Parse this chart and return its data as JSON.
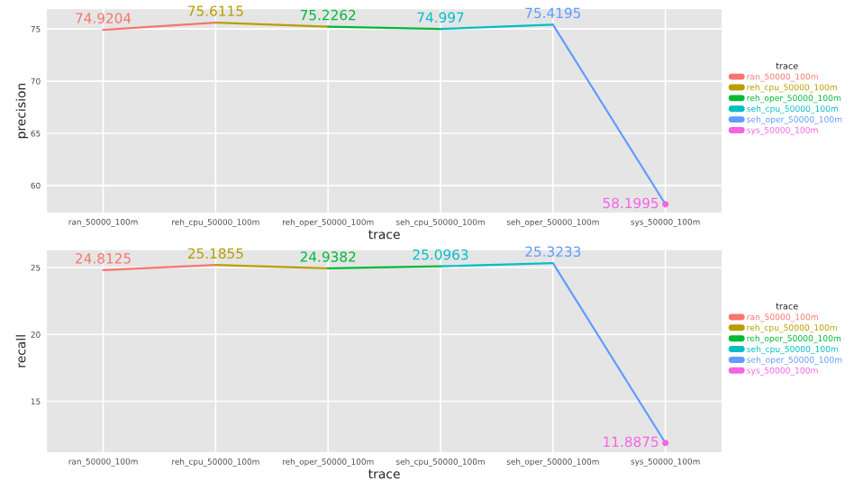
{
  "chart_data": [
    {
      "type": "line",
      "xlabel": "trace",
      "ylabel": "precision",
      "legend_title": "trace",
      "categories": [
        "ran_50000_100m",
        "reh_cpu_50000_100m",
        "reh_oper_50000_100m",
        "seh_cpu_50000_100m",
        "seh_oper_50000_100m",
        "sys_50000_100m"
      ],
      "series": [
        {
          "name": "ran_50000_100m",
          "color": "#f8766d",
          "values": [
            74.9204,
            75.6115,
            null,
            null,
            null,
            null
          ],
          "value_labels": [
            "74.9204",
            null,
            null,
            null,
            null,
            null
          ]
        },
        {
          "name": "reh_cpu_50000_100m",
          "color": "#b79f00",
          "values": [
            null,
            75.6115,
            75.2262,
            null,
            null,
            null
          ],
          "value_labels": [
            null,
            "75.6115",
            null,
            null,
            null,
            null
          ]
        },
        {
          "name": "reh_oper_50000_100m",
          "color": "#00ba38",
          "values": [
            null,
            null,
            75.2262,
            74.997,
            null,
            null
          ],
          "value_labels": [
            null,
            null,
            "75.2262",
            null,
            null,
            null
          ]
        },
        {
          "name": "seh_cpu_50000_100m",
          "color": "#00bfc4",
          "values": [
            null,
            null,
            null,
            74.997,
            75.4195,
            null
          ],
          "value_labels": [
            null,
            null,
            null,
            "74.997",
            null,
            null
          ]
        },
        {
          "name": "seh_oper_50000_100m",
          "color": "#619cff",
          "values": [
            null,
            null,
            null,
            null,
            75.4195,
            58.1995
          ],
          "value_labels": [
            null,
            null,
            null,
            null,
            "75.4195",
            null
          ]
        },
        {
          "name": "sys_50000_100m",
          "color": "#f564e3",
          "marker": "circle",
          "values": [
            null,
            null,
            null,
            null,
            null,
            58.1995
          ],
          "value_labels": [
            null,
            null,
            null,
            null,
            null,
            "58.1995"
          ]
        }
      ],
      "ylim": [
        57.4,
        76.9
      ],
      "yticks": [
        60,
        65,
        70,
        75
      ],
      "grid": true,
      "legend": "right"
    },
    {
      "type": "line",
      "xlabel": "trace",
      "ylabel": "recall",
      "legend_title": "trace",
      "categories": [
        "ran_50000_100m",
        "reh_cpu_50000_100m",
        "reh_oper_50000_100m",
        "seh_cpu_50000_100m",
        "seh_oper_50000_100m",
        "sys_50000_100m"
      ],
      "series": [
        {
          "name": "ran_50000_100m",
          "color": "#f8766d",
          "values": [
            24.8125,
            25.1855,
            null,
            null,
            null,
            null
          ],
          "value_labels": [
            "24.8125",
            null,
            null,
            null,
            null,
            null
          ]
        },
        {
          "name": "reh_cpu_50000_100m",
          "color": "#b79f00",
          "values": [
            null,
            25.1855,
            24.9382,
            null,
            null,
            null
          ],
          "value_labels": [
            null,
            "25.1855",
            null,
            null,
            null,
            null
          ]
        },
        {
          "name": "reh_oper_50000_100m",
          "color": "#00ba38",
          "values": [
            null,
            null,
            24.9382,
            25.0963,
            null,
            null
          ],
          "value_labels": [
            null,
            null,
            "24.9382",
            null,
            null,
            null
          ]
        },
        {
          "name": "seh_cpu_50000_100m",
          "color": "#00bfc4",
          "values": [
            null,
            null,
            null,
            25.0963,
            25.3233,
            null
          ],
          "value_labels": [
            null,
            null,
            null,
            "25.0963",
            null,
            null
          ]
        },
        {
          "name": "seh_oper_50000_100m",
          "color": "#619cff",
          "values": [
            null,
            null,
            null,
            null,
            25.3233,
            11.8875
          ],
          "value_labels": [
            null,
            null,
            null,
            null,
            "25.3233",
            null
          ]
        },
        {
          "name": "sys_50000_100m",
          "color": "#f564e3",
          "marker": "circle",
          "values": [
            null,
            null,
            null,
            null,
            null,
            11.8875
          ],
          "value_labels": [
            null,
            null,
            null,
            null,
            null,
            "11.8875"
          ]
        }
      ],
      "ylim": [
        11.2,
        26.3
      ],
      "yticks": [
        15,
        20,
        25
      ],
      "grid": true,
      "legend": "right"
    }
  ]
}
